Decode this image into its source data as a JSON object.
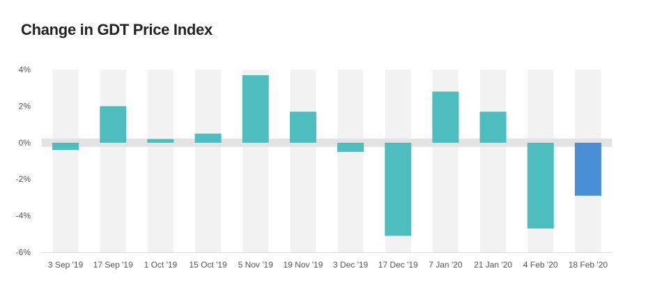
{
  "chart_data": {
    "type": "bar",
    "title": "Change in GDT Price Index",
    "xlabel": "",
    "ylabel": "",
    "categories": [
      "3 Sep '19",
      "17 Sep '19",
      "1 Oct '19",
      "15 Oct '19",
      "5 Nov '19",
      "19 Nov '19",
      "3 Dec '19",
      "17 Dec '19",
      "7 Jan '20",
      "21 Jan '20",
      "4 Feb '20",
      "18 Feb '20"
    ],
    "values": [
      -0.4,
      2.0,
      0.2,
      0.5,
      3.7,
      1.7,
      -0.5,
      -5.1,
      2.8,
      1.7,
      -4.7,
      -2.9
    ],
    "ylim": [
      -6,
      4
    ],
    "yticks": [
      4,
      2,
      0,
      -2,
      -4,
      -6
    ],
    "ytick_labels": [
      "4%",
      "2%",
      "0%",
      "-2%",
      "-4%",
      "-6%"
    ],
    "grid": false,
    "legend": "none",
    "colors": {
      "bar": "#4dbdbd",
      "highlight_bar": "#4a8ed6",
      "band_light": "#f2f2f2",
      "zero_band": "#e3e3e3",
      "baseline": "#dddddd"
    },
    "highlight_index": 11
  }
}
